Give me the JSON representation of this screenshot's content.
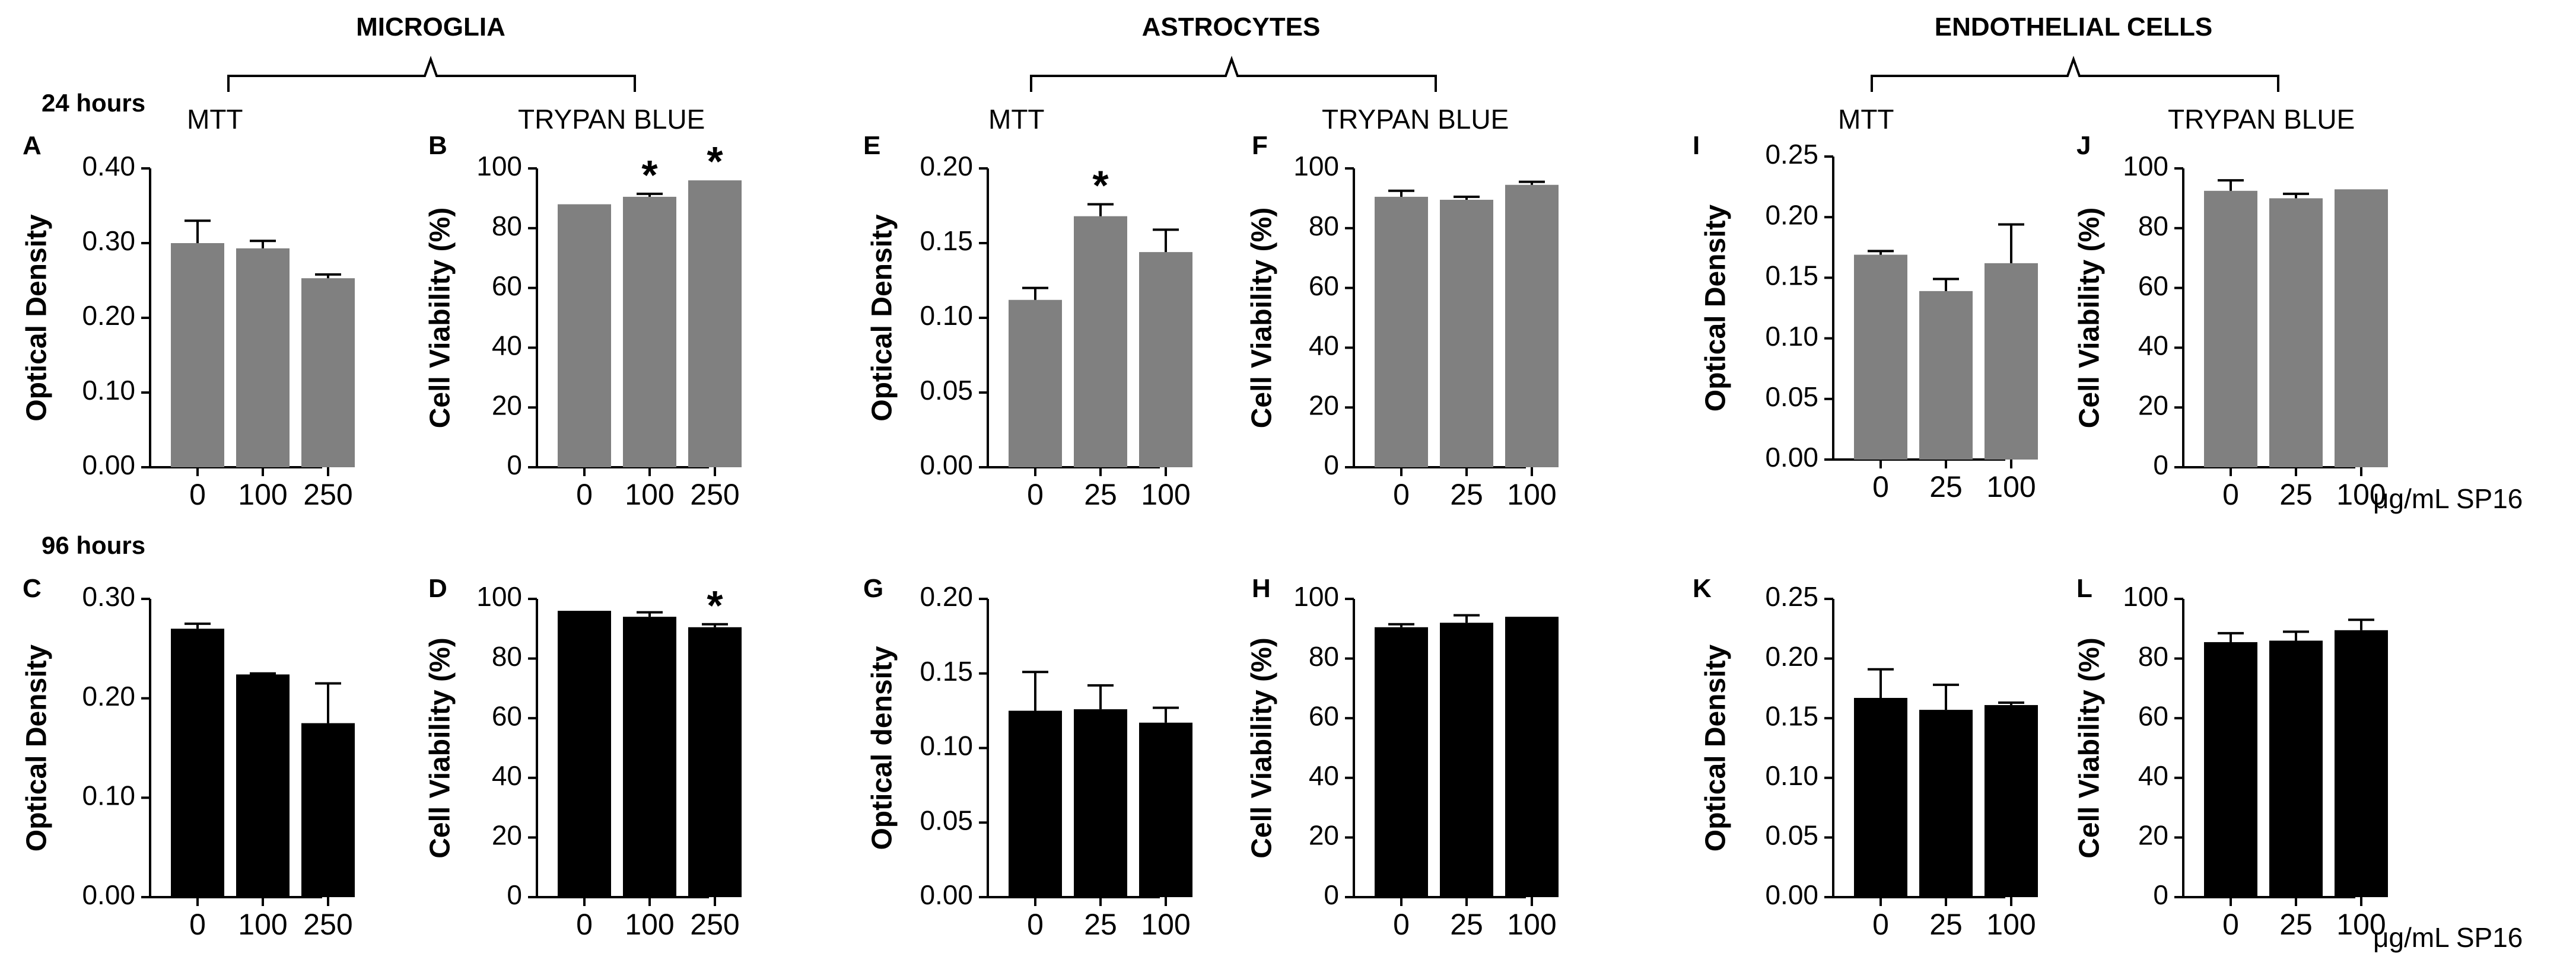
{
  "groups": [
    {
      "title": "MICROGLIA",
      "assays": [
        "MTT",
        "TRYPAN BLUE"
      ]
    },
    {
      "title": "ASTROCYTES",
      "assays": [
        "MTT",
        "TRYPAN BLUE"
      ]
    },
    {
      "title": "ENDOTHELIAL CELLS",
      "assays": [
        "MTT",
        "TRYPAN BLUE"
      ]
    }
  ],
  "time_labels": [
    "24 hours",
    "96 hours"
  ],
  "unit_label": "μg/mL SP16",
  "significance_marker": "*",
  "colors": {
    "bar_24h": "#808080",
    "bar_96h": "#000000",
    "axis": "#000000"
  },
  "chart_data": [
    {
      "panel": "A",
      "type": "bar",
      "group": "MICROGLIA",
      "assay": "MTT",
      "time": "24 hours",
      "ylabel": "Optical Density",
      "categories": [
        "0",
        "100",
        "250"
      ],
      "values": [
        0.3,
        0.293,
        0.253
      ],
      "errors": [
        0.03,
        0.01,
        0.005
      ],
      "significant": [
        false,
        false,
        false
      ],
      "ylim": [
        0,
        0.4
      ],
      "yticks": [
        "0.00",
        "0.10",
        "0.20",
        "0.30",
        "0.40"
      ]
    },
    {
      "panel": "B",
      "type": "bar",
      "group": "MICROGLIA",
      "assay": "TRYPAN BLUE",
      "time": "24 hours",
      "ylabel": "Cell Viability (%)",
      "categories": [
        "0",
        "100",
        "250"
      ],
      "values": [
        88,
        90.5,
        96
      ],
      "errors": [
        0,
        1,
        0
      ],
      "significant": [
        false,
        true,
        true
      ],
      "ylim": [
        0,
        100
      ],
      "yticks": [
        "0",
        "20",
        "40",
        "60",
        "80",
        "100"
      ]
    },
    {
      "panel": "E",
      "type": "bar",
      "group": "ASTROCYTES",
      "assay": "MTT",
      "time": "24 hours",
      "ylabel": "Optical Density",
      "categories": [
        "0",
        "25",
        "100"
      ],
      "values": [
        0.112,
        0.168,
        0.144
      ],
      "errors": [
        0.008,
        0.008,
        0.015
      ],
      "significant": [
        false,
        true,
        false
      ],
      "ylim": [
        0,
        0.2
      ],
      "yticks": [
        "0.00",
        "0.05",
        "0.10",
        "0.15",
        "0.20"
      ]
    },
    {
      "panel": "F",
      "type": "bar",
      "group": "ASTROCYTES",
      "assay": "TRYPAN BLUE",
      "time": "24 hours",
      "ylabel": "Cell Viability (%)",
      "categories": [
        "0",
        "25",
        "100"
      ],
      "values": [
        90.5,
        89.5,
        94.5
      ],
      "errors": [
        2,
        1,
        1
      ],
      "significant": [
        false,
        false,
        false
      ],
      "ylim": [
        0,
        100
      ],
      "yticks": [
        "0",
        "20",
        "40",
        "60",
        "80",
        "100"
      ]
    },
    {
      "panel": "I",
      "type": "bar",
      "group": "ENDOTHELIAL CELLS",
      "assay": "MTT",
      "time": "24 hours",
      "ylabel": "Optical  Density",
      "categories": [
        "0",
        "25",
        "100"
      ],
      "values": [
        0.169,
        0.139,
        0.162
      ],
      "errors": [
        0.003,
        0.01,
        0.032
      ],
      "significant": [
        false,
        false,
        false
      ],
      "ylim": [
        0,
        0.25
      ],
      "yticks": [
        "0.00",
        "0.05",
        "0.10",
        "0.15",
        "0.20",
        "0.25"
      ]
    },
    {
      "panel": "J",
      "type": "bar",
      "group": "ENDOTHELIAL CELLS",
      "assay": "TRYPAN BLUE",
      "time": "24 hours",
      "ylabel": "Cell Viability (%)",
      "categories": [
        "0",
        "25",
        "100"
      ],
      "values": [
        92.5,
        90,
        93
      ],
      "errors": [
        3.5,
        1.5,
        0
      ],
      "significant": [
        false,
        false,
        false
      ],
      "ylim": [
        0,
        100
      ],
      "yticks": [
        "0",
        "20",
        "40",
        "60",
        "80",
        "100"
      ]
    },
    {
      "panel": "C",
      "type": "bar",
      "group": "MICROGLIA",
      "assay": "MTT",
      "time": "96 hours",
      "ylabel": "Optical Density",
      "categories": [
        "0",
        "100",
        "250"
      ],
      "values": [
        0.27,
        0.224,
        0.175
      ],
      "errors": [
        0.005,
        0.001,
        0.04
      ],
      "significant": [
        false,
        false,
        false
      ],
      "ylim": [
        0,
        0.3
      ],
      "yticks": [
        "0.00",
        "0.10",
        "0.20",
        "0.30"
      ]
    },
    {
      "panel": "D",
      "type": "bar",
      "group": "MICROGLIA",
      "assay": "TRYPAN BLUE",
      "time": "96 hours",
      "ylabel": "Cell Viability (%)",
      "categories": [
        "0",
        "100",
        "250"
      ],
      "values": [
        96,
        94,
        90.5
      ],
      "errors": [
        0,
        1.5,
        1
      ],
      "significant": [
        false,
        false,
        true
      ],
      "ylim": [
        0,
        100
      ],
      "yticks": [
        "0",
        "20",
        "40",
        "60",
        "80",
        "100"
      ]
    },
    {
      "panel": "G",
      "type": "bar",
      "group": "ASTROCYTES",
      "assay": "MTT",
      "time": "96 hours",
      "ylabel": "Optical density",
      "categories": [
        "0",
        "25",
        "100"
      ],
      "values": [
        0.125,
        0.126,
        0.117
      ],
      "errors": [
        0.026,
        0.016,
        0.01
      ],
      "significant": [
        false,
        false,
        false
      ],
      "ylim": [
        0,
        0.2
      ],
      "yticks": [
        "0.00",
        "0.05",
        "0.10",
        "0.15",
        "0.20"
      ]
    },
    {
      "panel": "H",
      "type": "bar",
      "group": "ASTROCYTES",
      "assay": "TRYPAN BLUE",
      "time": "96 hours",
      "ylabel": "Cell Viability (%)",
      "categories": [
        "0",
        "25",
        "100"
      ],
      "values": [
        90.5,
        92,
        94
      ],
      "errors": [
        1,
        2.5,
        0
      ],
      "significant": [
        false,
        false,
        false
      ],
      "ylim": [
        0,
        100
      ],
      "yticks": [
        "0",
        "20",
        "40",
        "60",
        "80",
        "100"
      ]
    },
    {
      "panel": "K",
      "type": "bar",
      "group": "ENDOTHELIAL CELLS",
      "assay": "MTT",
      "time": "96 hours",
      "ylabel": "Optical  Density",
      "categories": [
        "0",
        "25",
        "100"
      ],
      "values": [
        0.167,
        0.157,
        0.161
      ],
      "errors": [
        0.024,
        0.021,
        0.002
      ],
      "significant": [
        false,
        false,
        false
      ],
      "ylim": [
        0,
        0.25
      ],
      "yticks": [
        "0.00",
        "0.05",
        "0.10",
        "0.15",
        "0.20",
        "0.25"
      ]
    },
    {
      "panel": "L",
      "type": "bar",
      "group": "ENDOTHELIAL CELLS",
      "assay": "TRYPAN BLUE",
      "time": "96 hours",
      "ylabel": "Cell Viability (%)",
      "categories": [
        "0",
        "25",
        "100"
      ],
      "values": [
        85.5,
        86,
        89.5
      ],
      "errors": [
        3,
        3,
        3.5
      ],
      "significant": [
        false,
        false,
        false
      ],
      "ylim": [
        0,
        100
      ],
      "yticks": [
        "0",
        "20",
        "40",
        "60",
        "80",
        "100"
      ]
    }
  ]
}
